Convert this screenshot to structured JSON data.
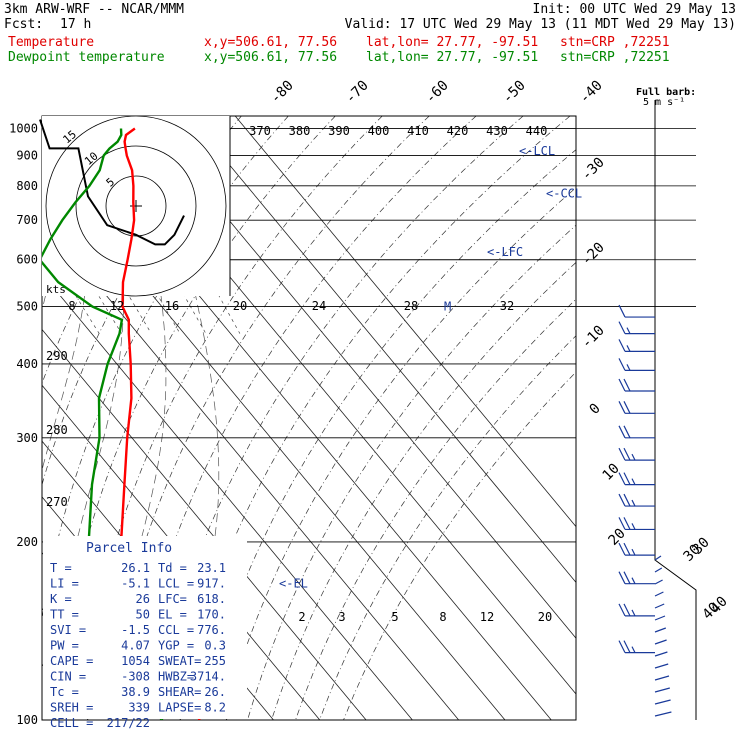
{
  "header": {
    "model": "3km ARW-WRF -- NCAR/MMM",
    "init": "Init: 00 UTC Wed 29 May 13",
    "fcst_label": "Fcst:",
    "fcst_value": "17 h",
    "valid": "Valid: 17 UTC Wed 29 May 13 (11 MDT Wed 29 May 13)",
    "fields": [
      {
        "name": "Temperature",
        "xy": "x,y=506.61, 77.56",
        "latlon": "lat,lon= 27.77, -97.51",
        "stn": "stn=CRP ,72251",
        "color": "#e00000"
      },
      {
        "name": "Dewpoint temperature",
        "xy": "x,y=506.61, 77.56",
        "latlon": "lat,lon= 27.77, -97.51",
        "stn": "stn=CRP ,72251",
        "color": "#008800"
      }
    ]
  },
  "barb_key": {
    "title": "Full barb:",
    "units": "5 m s⁻¹"
  },
  "chart_data": {
    "type": "line",
    "chart_kind": "Skew-T log-P sounding",
    "pressure_levels": [
      100,
      200,
      300,
      400,
      500,
      600,
      700,
      800,
      900,
      1000
    ],
    "isotherm_labels": [
      "-80",
      "-70",
      "-60",
      "-50",
      "-40",
      "-30",
      "-20",
      "-10",
      "0",
      "10",
      "20",
      "30",
      "40"
    ],
    "theta_labels": [
      "370",
      "380",
      "390",
      "400",
      "410",
      "420",
      "430",
      "440"
    ],
    "mixing_ratio_labels": [
      "2",
      "3",
      "5",
      "8",
      "12",
      "20"
    ],
    "series": [
      {
        "name": "Temperature",
        "color": "#ff0000",
        "points": [
          [
            1000,
            26.1
          ],
          [
            975,
            23
          ],
          [
            950,
            21.5
          ],
          [
            925,
            20.5
          ],
          [
            900,
            19.5
          ],
          [
            850,
            18
          ],
          [
            800,
            15.5
          ],
          [
            750,
            12.5
          ],
          [
            700,
            9.5
          ],
          [
            650,
            5.5
          ],
          [
            600,
            1
          ],
          [
            550,
            -4
          ],
          [
            500,
            -8.5
          ],
          [
            475,
            -9.5
          ],
          [
            450,
            -12
          ],
          [
            400,
            -17
          ],
          [
            350,
            -23
          ],
          [
            300,
            -31
          ],
          [
            250,
            -40
          ],
          [
            200,
            -51
          ],
          [
            175,
            -57.5
          ],
          [
            160,
            -62
          ],
          [
            150,
            -63
          ],
          [
            140,
            -60.5
          ],
          [
            130,
            -58.5
          ],
          [
            120,
            -60
          ],
          [
            110,
            -63
          ],
          [
            100,
            -66
          ]
        ]
      },
      {
        "name": "Dewpoint temperature",
        "color": "#008800",
        "points": [
          [
            1000,
            23.1
          ],
          [
            975,
            22
          ],
          [
            950,
            20
          ],
          [
            925,
            17
          ],
          [
            900,
            14.5
          ],
          [
            850,
            11
          ],
          [
            800,
            6
          ],
          [
            750,
            0
          ],
          [
            700,
            -6
          ],
          [
            650,
            -12
          ],
          [
            600,
            -18
          ],
          [
            550,
            -18
          ],
          [
            500,
            -15
          ],
          [
            475,
            -11
          ],
          [
            450,
            -14
          ],
          [
            400,
            -22
          ],
          [
            350,
            -30
          ],
          [
            300,
            -37
          ],
          [
            250,
            -47
          ],
          [
            200,
            -58
          ],
          [
            175,
            -64
          ],
          [
            160,
            -69
          ],
          [
            150,
            -72
          ],
          [
            140,
            -76
          ],
          [
            130,
            -77
          ],
          [
            120,
            -76
          ],
          [
            110,
            -75
          ],
          [
            100,
            -74
          ]
        ]
      }
    ],
    "annotations": [
      {
        "text": "<-EL",
        "p": 170
      },
      {
        "text": "<-LFC",
        "p": 618
      },
      {
        "text": "<-CCL",
        "p": 776
      },
      {
        "text": "<-LCL",
        "p": 917
      },
      {
        "text": "M",
        "p": 500
      }
    ],
    "wind_barbs": [
      {
        "p": 130,
        "dir": 270,
        "spd": 25
      },
      {
        "p": 150,
        "dir": 270,
        "spd": 25
      },
      {
        "p": 170,
        "dir": 270,
        "spd": 25
      },
      {
        "p": 190,
        "dir": 265,
        "spd": 25
      },
      {
        "p": 210,
        "dir": 265,
        "spd": 25
      },
      {
        "p": 230,
        "dir": 265,
        "spd": 25
      },
      {
        "p": 250,
        "dir": 265,
        "spd": 25
      },
      {
        "p": 275,
        "dir": 260,
        "spd": 25
      },
      {
        "p": 300,
        "dir": 260,
        "spd": 20
      },
      {
        "p": 330,
        "dir": 260,
        "spd": 20
      },
      {
        "p": 360,
        "dir": 260,
        "spd": 20
      },
      {
        "p": 390,
        "dir": 265,
        "spd": 15
      },
      {
        "p": 420,
        "dir": 265,
        "spd": 15
      },
      {
        "p": 450,
        "dir": 265,
        "spd": 15
      },
      {
        "p": 480,
        "dir": 265,
        "spd": 10
      }
    ],
    "hodograph": {
      "units": "kts",
      "ring_labels": [
        "5",
        "10",
        "15"
      ],
      "points": [
        [
          5,
          -1
        ],
        [
          4,
          -3
        ],
        [
          3,
          -4
        ],
        [
          2,
          -4
        ],
        [
          1,
          -3.5
        ],
        [
          0,
          -3
        ],
        [
          -3,
          -2
        ],
        [
          -5,
          1
        ],
        [
          -6,
          6
        ],
        [
          -9,
          6
        ],
        [
          -10,
          9
        ]
      ]
    },
    "inset_axis": {
      "top_labels": [
        "370",
        "380",
        "390",
        "400",
        "410",
        "420",
        "430",
        "440"
      ],
      "bottom_labels": [
        "8",
        "12",
        "16",
        "20",
        "24",
        "28",
        "32"
      ],
      "left_labels": [
        "290",
        "280",
        "270"
      ]
    },
    "hodo_speed_labels": [
      "30",
      "40"
    ]
  },
  "parcel_info": {
    "title": "Parcel Info",
    "rows": [
      [
        "T  =",
        "26.1",
        "Td =",
        "23.1"
      ],
      [
        "LI =",
        "-5.1",
        "LCL =",
        "917."
      ],
      [
        "K  =",
        "26",
        "LFC=",
        "618."
      ],
      [
        "TT =",
        "50",
        "EL =",
        "170."
      ],
      [
        "SVI =",
        "-1.5",
        "CCL =",
        "776."
      ],
      [
        "PW =",
        "4.07",
        "YGP =",
        "0.3"
      ],
      [
        "CAPE =",
        "1054",
        "SWEAT=",
        "255"
      ],
      [
        "CIN =",
        "-308",
        "HWBZ=",
        "3714."
      ],
      [
        "Tc =",
        "38.9",
        "SHEAR=",
        "26."
      ],
      [
        "SREH =",
        "339",
        "LAPSE=",
        "8.2"
      ],
      [
        "CELL =",
        "217/22",
        "",
        ""
      ]
    ]
  }
}
